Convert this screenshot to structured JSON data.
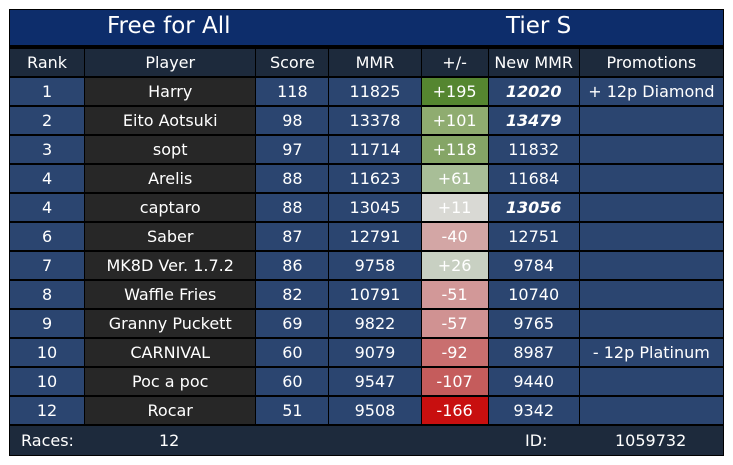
{
  "header": {
    "mode": "Free for All",
    "tier": "Tier S"
  },
  "columns": [
    "Rank",
    "Player",
    "Score",
    "MMR",
    "+/-",
    "New MMR",
    "Promotions"
  ],
  "rows": [
    {
      "rank": "1",
      "player": "Harry",
      "score": "118",
      "mmr": "11825",
      "delta": "+195",
      "new_mmr": "12020",
      "promotion": "+ 12p Diamond",
      "delta_color": "#558630",
      "new_mmr_highlight": true,
      "promotion_kind": "up"
    },
    {
      "rank": "2",
      "player": "Eito Aotsuki",
      "score": "98",
      "mmr": "13378",
      "delta": "+101",
      "new_mmr": "13479",
      "promotion": "",
      "delta_color": "#8fac70",
      "new_mmr_highlight": true,
      "promotion_kind": ""
    },
    {
      "rank": "3",
      "player": "sopt",
      "score": "97",
      "mmr": "11714",
      "delta": "+118",
      "new_mmr": "11832",
      "promotion": "",
      "delta_color": "#85a566",
      "new_mmr_highlight": false,
      "promotion_kind": ""
    },
    {
      "rank": "4",
      "player": "Arelis",
      "score": "88",
      "mmr": "11623",
      "delta": "+61",
      "new_mmr": "11684",
      "promotion": "",
      "delta_color": "#a8be97",
      "new_mmr_highlight": false,
      "promotion_kind": ""
    },
    {
      "rank": "4",
      "player": "captaro",
      "score": "88",
      "mmr": "13045",
      "delta": "+11",
      "new_mmr": "13056",
      "promotion": "",
      "delta_color": "#d9d9d4",
      "new_mmr_highlight": true,
      "promotion_kind": ""
    },
    {
      "rank": "6",
      "player": "Saber",
      "score": "87",
      "mmr": "12791",
      "delta": "-40",
      "new_mmr": "12751",
      "promotion": "",
      "delta_color": "#d3a6a5",
      "new_mmr_highlight": false,
      "promotion_kind": ""
    },
    {
      "rank": "7",
      "player": "MK8D Ver. 1.7.2",
      "score": "86",
      "mmr": "9758",
      "delta": "+26",
      "new_mmr": "9784",
      "promotion": "",
      "delta_color": "#c8d0c2",
      "new_mmr_highlight": false,
      "promotion_kind": ""
    },
    {
      "rank": "8",
      "player": "Waffle Fries",
      "score": "82",
      "mmr": "10791",
      "delta": "-51",
      "new_mmr": "10740",
      "promotion": "",
      "delta_color": "#d29898",
      "new_mmr_highlight": false,
      "promotion_kind": ""
    },
    {
      "rank": "9",
      "player": "Granny Puckett",
      "score": "69",
      "mmr": "9822",
      "delta": "-57",
      "new_mmr": "9765",
      "promotion": "",
      "delta_color": "#d09292",
      "new_mmr_highlight": false,
      "promotion_kind": ""
    },
    {
      "rank": "10",
      "player": "CARNIVAL",
      "score": "60",
      "mmr": "9079",
      "delta": "-92",
      "new_mmr": "8987",
      "promotion": "- 12p Platinum",
      "delta_color": "#c96f6f",
      "new_mmr_highlight": false,
      "promotion_kind": "down"
    },
    {
      "rank": "10",
      "player": "Poc a poc",
      "score": "60",
      "mmr": "9547",
      "delta": "-107",
      "new_mmr": "9440",
      "promotion": "",
      "delta_color": "#c55c5c",
      "new_mmr_highlight": false,
      "promotion_kind": ""
    },
    {
      "rank": "12",
      "player": "Rocar",
      "score": "51",
      "mmr": "9508",
      "delta": "-166",
      "new_mmr": "9342",
      "promotion": "",
      "delta_color": "#c80f0f",
      "new_mmr_highlight": false,
      "promotion_kind": ""
    }
  ],
  "footer": {
    "races_label": "Races:",
    "races_value": "12",
    "id_label": "ID:",
    "id_value": "1059732"
  },
  "colors": {
    "title_bg": "#0d2d6b",
    "header_bg": "#1d2a3c",
    "cell_blue": "#2b4570",
    "cell_dark": "#272727",
    "highlight_gold": "#f2c045",
    "promotion_up": "#b3c8e3",
    "promotion_down": "#49a9b6"
  }
}
